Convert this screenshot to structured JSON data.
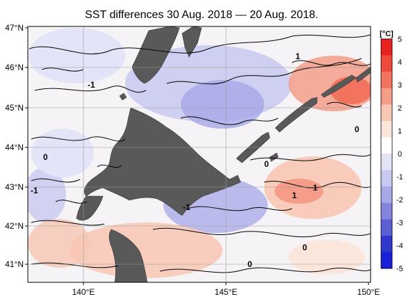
{
  "title": "SST differences 30 Aug. 2018 — 20 Aug. 2018.",
  "colorbar": {
    "unit": "[°C]",
    "ticks": [
      "5",
      "4",
      "3",
      "2",
      "1",
      "0",
      "-1",
      "-2",
      "-3",
      "-4",
      "-5"
    ],
    "colors": [
      "#e82020",
      "#ee4a3c",
      "#f2735e",
      "#f59d88",
      "#f8c6b4",
      "#fbe6dc",
      "#ffffff",
      "#e3e4f7",
      "#c8c9f0",
      "#a6a8e8",
      "#8284de",
      "#5d60d4",
      "#3338cc",
      "#1a1fd8"
    ]
  },
  "axes": {
    "lat_labels": [
      "47°N",
      "46°N",
      "45°N",
      "44°N",
      "43°N",
      "42°N",
      "41°N"
    ],
    "lon_labels": [
      "140°E",
      "145°E",
      "150°E"
    ]
  },
  "contour_labels": [
    "1",
    "-1",
    "0",
    "-1",
    "1",
    "-1",
    "1",
    "0",
    "0",
    "0",
    "0"
  ],
  "colors": {
    "land": "#595959",
    "grid": "#9a9a9a"
  }
}
